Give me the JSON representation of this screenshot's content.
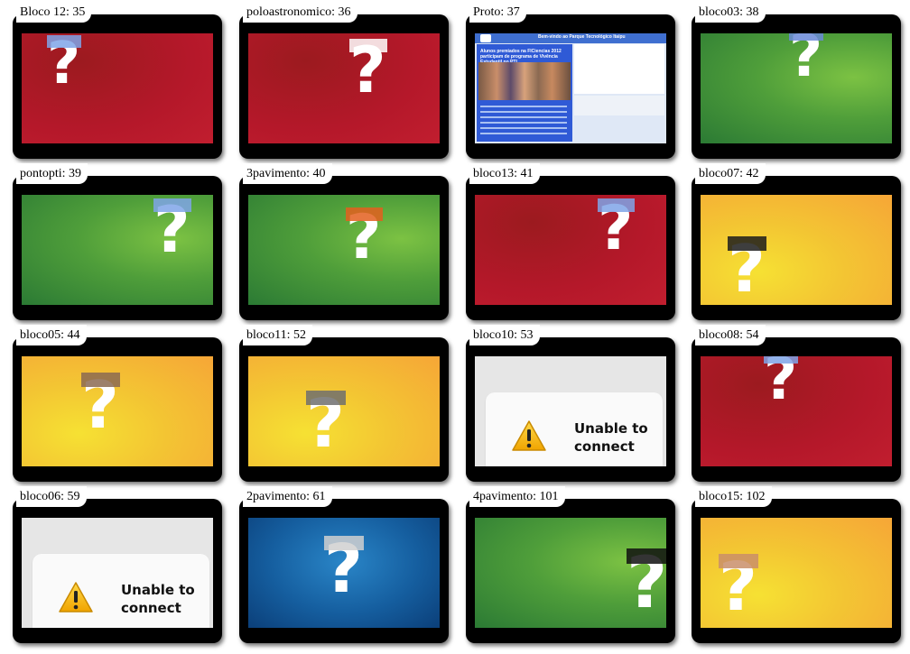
{
  "tiles": [
    {
      "label": "Bloco 12: 35",
      "bg": "red"
    },
    {
      "label": "poloastronomico: 36",
      "bg": "red"
    },
    {
      "label": "Proto: 37",
      "bg": "portal"
    },
    {
      "label": "bloco03: 38",
      "bg": "green"
    },
    {
      "label": "pontopti: 39",
      "bg": "green"
    },
    {
      "label": "3pavimento: 40",
      "bg": "green"
    },
    {
      "label": "bloco13: 41",
      "bg": "red"
    },
    {
      "label": "bloco07: 42",
      "bg": "yellow"
    },
    {
      "label": "bloco05: 44",
      "bg": "yellow"
    },
    {
      "label": "bloco11: 52",
      "bg": "yellow"
    },
    {
      "label": "bloco10: 53",
      "bg": "error"
    },
    {
      "label": "bloco08: 54",
      "bg": "red"
    },
    {
      "label": "bloco06: 59",
      "bg": "error"
    },
    {
      "label": "2pavimento: 61",
      "bg": "blue"
    },
    {
      "label": "4pavimento: 101",
      "bg": "green"
    },
    {
      "label": "bloco15: 102",
      "bg": "yellow"
    }
  ],
  "error_message": "Unable to connect",
  "portal": {
    "header": "Bem-vindo ao Parque Tecnológico Itaipu",
    "headline": "Alunos premiados na FICiencias 2012 participam de programa de Vivência Estudantil no PTI"
  },
  "colors": {
    "red": "#b5182a",
    "green": "#4f9e3a",
    "yellow": "#f3c533",
    "blue": "#155e9f",
    "error_bg": "#e6e6e6"
  }
}
